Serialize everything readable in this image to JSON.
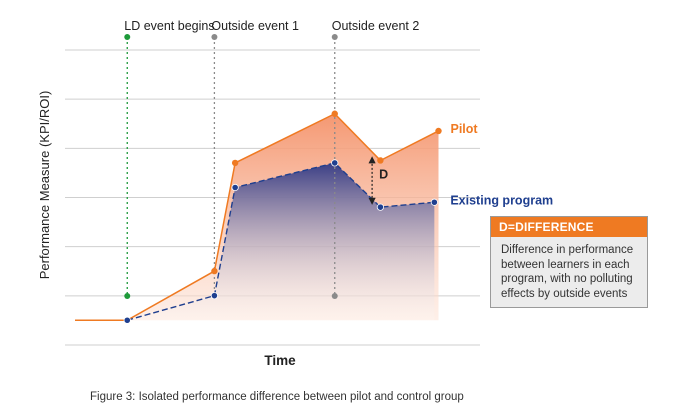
{
  "chart_data": {
    "type": "line",
    "xlabel": "Time",
    "ylabel": "Performance Measure (KPI/ROI)",
    "ylim": [
      0,
      6
    ],
    "xlim": [
      0,
      100
    ],
    "grid": true,
    "series": [
      {
        "name": "Pilot",
        "color": "#ef7a22",
        "line_style": "solid",
        "x": [
          15,
          36,
          41,
          65,
          76,
          90
        ],
        "y": [
          0.3,
          1.3,
          3.5,
          4.5,
          3.55,
          4.15
        ],
        "leading_x": 0
      },
      {
        "name": "Existing program",
        "color": "#1f3f8f",
        "line_style": "dashed",
        "x": [
          15,
          36,
          41,
          65,
          76,
          89
        ],
        "y": [
          0.3,
          0.8,
          3.0,
          3.5,
          2.6,
          2.7
        ]
      }
    ],
    "events": [
      {
        "label": "LD event begins",
        "x": 15,
        "color": "#1e9a3a"
      },
      {
        "label": "Outside event 1",
        "x": 36,
        "color": "#8a8a8a"
      },
      {
        "label": "Outside event 2",
        "x": 65,
        "color": "#8a8a8a"
      }
    ],
    "annotation": {
      "label": "D",
      "x": 74,
      "y_from": 3.4,
      "y_to": 2.8
    }
  },
  "callout": {
    "title": "D=DIFFERENCE",
    "text": "Difference in performance between learners in each program, with no polluting effects by outside events"
  },
  "caption": "Figure 3: Isolated performance difference between pilot and control group"
}
